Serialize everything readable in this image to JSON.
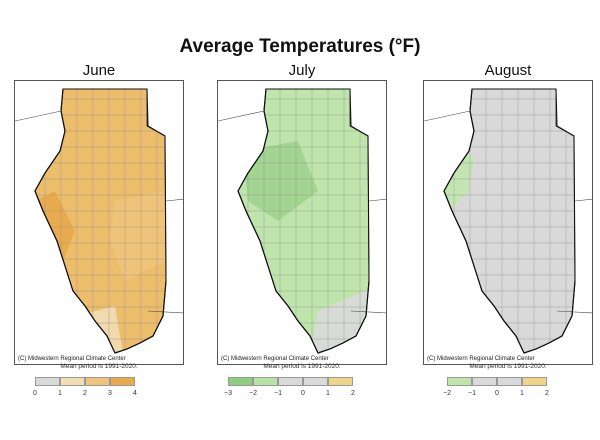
{
  "title": "Average Temperatures (°F)",
  "mean_period": "Mean period is 1991-2020.",
  "credit": "(C) Midwestern Regional Climate Center",
  "panels": [
    {
      "name": "June",
      "legend_colors": [
        "#d9d9d9",
        "#f2ddb5",
        "#f0c37c",
        "#e9a94c"
      ],
      "legend_ticks": [
        "0",
        "1",
        "2",
        "3",
        "4"
      ],
      "fill_base": "#ecbd6a",
      "fill_patches": [
        "#e9a94c",
        "#f0c37c",
        "#f2ddb5"
      ]
    },
    {
      "name": "July",
      "legend_colors": [
        "#8fce7d",
        "#b7e3a7",
        "#d9d9d9",
        "#d9d9d9",
        "#f0d488"
      ],
      "legend_ticks": [
        "−3",
        "−2",
        "−1",
        "0",
        "1",
        "2"
      ],
      "fill_base": "#bfe5ad",
      "fill_patches": [
        "#9fd38f",
        "#d9d9d9"
      ]
    },
    {
      "name": "August",
      "legend_colors": [
        "#bfe5ad",
        "#d9d9d9",
        "#d9d9d9",
        "#f0d488"
      ],
      "legend_ticks": [
        "−2",
        "−1",
        "0",
        "1",
        "2"
      ],
      "fill_base": "#d9d9d9",
      "fill_patches": [
        "#bfe5ad"
      ]
    }
  ]
}
